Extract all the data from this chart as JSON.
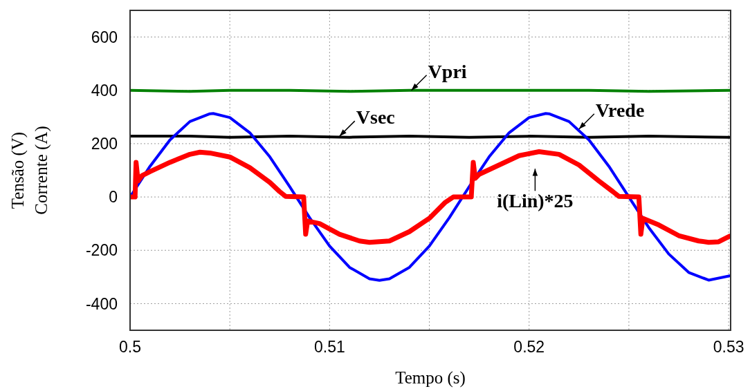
{
  "chart_data": {
    "type": "line",
    "xlabel": "Tempo (s)",
    "ylabel": "Tensão (V)\nCorrente (A)",
    "xlim": [
      0.5,
      0.5301
    ],
    "xticks": [
      0.5,
      {
        "value": 0.505,
        "label": null
      },
      0.51,
      {
        "value": 0.515,
        "label": null
      },
      0.52,
      {
        "value": 0.525,
        "label": null
      },
      0.53
    ],
    "ylim": [
      -500,
      700
    ],
    "yticks": [
      -400,
      -200,
      0,
      200,
      400,
      600
    ],
    "grid": true,
    "series": [
      {
        "color": "#008000",
        "x": [
          0.5,
          0.503,
          0.505,
          0.508,
          0.511,
          0.514,
          0.517,
          0.52,
          0.523,
          0.526,
          0.5301
        ],
        "values": [
          400,
          396,
          400,
          400,
          396,
          400,
          400,
          400,
          400,
          396,
          400
        ]
      },
      {
        "color": "#000000",
        "x": [
          0.5,
          0.503,
          0.505,
          0.508,
          0.511,
          0.514,
          0.517,
          0.52,
          0.523,
          0.526,
          0.5301
        ],
        "values": [
          228,
          228,
          224,
          228,
          224,
          228,
          224,
          228,
          224,
          228,
          224
        ]
      },
      {
        "color": "#0000ff",
        "x": [
          0.5,
          0.501,
          0.502,
          0.503,
          0.504,
          0.50417,
          0.505,
          0.506,
          0.507,
          0.508,
          0.509,
          0.51,
          0.511,
          0.512,
          0.5125,
          0.513,
          0.514,
          0.515,
          0.516,
          0.517,
          0.518,
          0.519,
          0.52,
          0.52083,
          0.521,
          0.522,
          0.523,
          0.524,
          0.525,
          0.526,
          0.527,
          0.528,
          0.529,
          0.5301
        ],
        "values": [
          0,
          115,
          214,
          283,
          312,
          313,
          298,
          241,
          151,
          39,
          -78,
          -184,
          -264,
          -307,
          -313,
          -307,
          -264,
          -184,
          -78,
          39,
          151,
          241,
          298,
          313,
          312,
          283,
          214,
          115,
          0,
          -115,
          -214,
          -283,
          -312,
          -295
        ]
      },
      {
        "color": "#ff0000",
        "x": [
          0.5,
          0.50025,
          0.5003,
          0.5004,
          0.5006,
          0.501,
          0.502,
          0.503,
          0.5035,
          0.504,
          0.505,
          0.506,
          0.507,
          0.5075,
          0.5078,
          0.5087,
          0.5088,
          0.5089,
          0.5095,
          0.5105,
          0.5115,
          0.512,
          0.513,
          0.514,
          0.515,
          0.5158,
          0.5162,
          0.5171,
          0.5172,
          0.5173,
          0.5175,
          0.5185,
          0.5195,
          0.5205,
          0.5215,
          0.5225,
          0.5235,
          0.5242,
          0.5245,
          0.5255,
          0.5256,
          0.5257,
          0.5265,
          0.5275,
          0.5285,
          0.529,
          0.5295,
          0.5301
        ],
        "values": [
          0,
          0,
          130,
          60,
          80,
          95,
          130,
          160,
          168,
          165,
          150,
          110,
          55,
          20,
          2,
          0,
          -140,
          -90,
          -100,
          -140,
          -165,
          -170,
          -165,
          -130,
          -80,
          -20,
          0,
          0,
          130,
          70,
          85,
          120,
          155,
          170,
          160,
          120,
          60,
          20,
          2,
          0,
          -140,
          -80,
          -105,
          -145,
          -165,
          -170,
          -168,
          -145
        ]
      }
    ],
    "annotations": [
      {
        "text": "Vpri",
        "x": 0.5141,
        "y": 400
      },
      {
        "text": "Vsec",
        "x": 0.5105,
        "y": 228
      },
      {
        "text": "Vrede",
        "x": 0.5225,
        "y": 255
      },
      {
        "text": "i(Lin)*25",
        "x": 0.5203,
        "y": 168
      }
    ]
  }
}
